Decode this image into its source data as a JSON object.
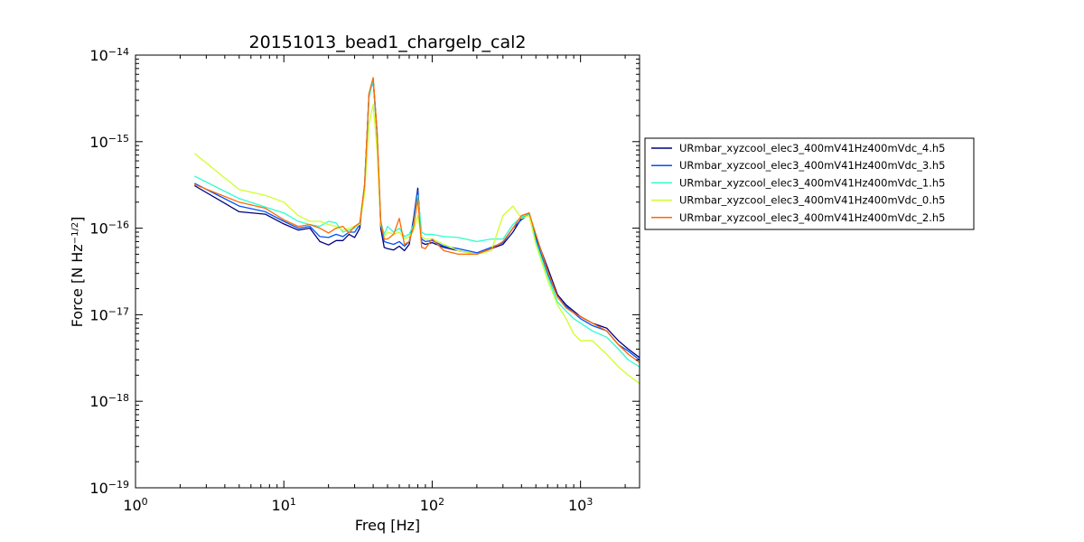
{
  "chart_data": {
    "type": "line",
    "title": "20151013_bead1_chargelp_cal2",
    "xlabel": "Freq [Hz]",
    "ylabel": "Force [N Hz",
    "ylabel_exponent": "−1/2",
    "ylabel_close": "]",
    "xscale": "log",
    "yscale": "log",
    "xlim": [
      1,
      2500
    ],
    "ylim": [
      1e-19,
      1e-14
    ],
    "x_ticks": [
      {
        "value": 1,
        "base": "10",
        "exp": "0"
      },
      {
        "value": 10,
        "base": "10",
        "exp": "1"
      },
      {
        "value": 100,
        "base": "10",
        "exp": "2"
      },
      {
        "value": 1000,
        "base": "10",
        "exp": "3"
      }
    ],
    "y_ticks": [
      {
        "value": 1e-19,
        "base": "10",
        "exp": "−19"
      },
      {
        "value": 1e-18,
        "base": "10",
        "exp": "−18"
      },
      {
        "value": 1e-17,
        "base": "10",
        "exp": "−17"
      },
      {
        "value": 1e-16,
        "base": "10",
        "exp": "−16"
      },
      {
        "value": 1e-15,
        "base": "10",
        "exp": "−15"
      },
      {
        "value": 1e-14,
        "base": "10",
        "exp": "−14"
      }
    ],
    "grid": false,
    "legend_position": "outside-right",
    "series": [
      {
        "name": "URmbar_xyzcool_elec3_400mV41Hz400mVdc_4.h5",
        "color": "#00007f",
        "x": [
          2.5,
          5,
          7.5,
          10,
          12.5,
          15,
          17.5,
          20,
          22.5,
          25,
          27.5,
          30,
          32.5,
          35,
          37.5,
          40,
          42.5,
          45,
          47.5,
          50,
          55,
          60,
          65,
          70,
          75,
          80,
          85,
          90,
          100,
          120,
          150,
          200,
          250,
          300,
          350,
          400,
          450,
          500,
          600,
          700,
          800,
          900,
          1000,
          1200,
          1500,
          1800,
          2100,
          2500
        ],
        "y": [
          3.1e-16,
          1.55e-16,
          1.45e-16,
          1.12e-16,
          9.5e-17,
          1e-16,
          7e-17,
          6.4e-17,
          7.2e-17,
          7.2e-17,
          8.5e-17,
          7.8e-17,
          1e-16,
          3e-16,
          3.5e-15,
          5.3e-15,
          1.3e-15,
          1e-16,
          6e-17,
          5.8e-17,
          5.6e-17,
          6.2e-17,
          5.5e-17,
          6.5e-17,
          1.3e-16,
          2.9e-16,
          6.8e-17,
          6.5e-17,
          6.8e-17,
          6e-17,
          5.5e-17,
          5e-17,
          5.8e-17,
          6.5e-17,
          9e-17,
          1.3e-16,
          1.5e-16,
          8e-17,
          3.5e-17,
          1.7e-17,
          1.3e-17,
          1.1e-17,
          9.5e-18,
          8e-18,
          7e-18,
          5e-18,
          4e-18,
          3.2e-18
        ]
      },
      {
        "name": "URmbar_xyzcool_elec3_400mV41Hz400mVdc_3.h5",
        "color": "#0050ff",
        "x": [
          2.5,
          5,
          7.5,
          10,
          12.5,
          15,
          17.5,
          20,
          22.5,
          25,
          27.5,
          30,
          32.5,
          35,
          37.5,
          40,
          42.5,
          45,
          47.5,
          50,
          55,
          60,
          65,
          70,
          75,
          80,
          85,
          90,
          100,
          120,
          150,
          200,
          250,
          300,
          350,
          400,
          450,
          500,
          600,
          700,
          800,
          900,
          1000,
          1200,
          1500,
          1800,
          2100,
          2500
        ],
        "y": [
          3.3e-16,
          1.8e-16,
          1.55e-16,
          1.2e-16,
          1e-16,
          1.05e-16,
          8e-17,
          7.8e-17,
          8.5e-17,
          8e-17,
          9e-17,
          9e-17,
          1.1e-16,
          3.2e-16,
          3.4e-15,
          5e-15,
          1.2e-15,
          1.1e-16,
          7e-17,
          6.8e-17,
          6.5e-17,
          7e-17,
          6.2e-17,
          7e-17,
          1.2e-16,
          2.7e-16,
          7.5e-17,
          7e-17,
          7.2e-17,
          6.2e-17,
          5.8e-17,
          5.2e-17,
          6e-17,
          6.8e-17,
          1e-16,
          1.25e-16,
          1.45e-16,
          7.5e-17,
          3e-17,
          1.6e-17,
          1.25e-17,
          1.05e-17,
          9e-18,
          7.5e-18,
          6.5e-18,
          4.5e-18,
          3.8e-18,
          3e-18
        ]
      },
      {
        "name": "URmbar_xyzcool_elec3_400mV41Hz400mVdc_1.h5",
        "color": "#29ffce",
        "x": [
          2.5,
          5,
          7.5,
          10,
          12.5,
          15,
          17.5,
          20,
          22.5,
          25,
          27.5,
          30,
          32.5,
          35,
          37.5,
          40,
          42.5,
          45,
          47.5,
          50,
          55,
          60,
          65,
          70,
          75,
          80,
          85,
          90,
          100,
          120,
          150,
          200,
          250,
          300,
          350,
          400,
          450,
          500,
          600,
          700,
          800,
          900,
          1000,
          1200,
          1500,
          1800,
          2100,
          2500
        ],
        "y": [
          4e-16,
          2.2e-16,
          1.75e-16,
          1.5e-16,
          1.2e-16,
          1.1e-16,
          1.05e-16,
          1.2e-16,
          1.15e-16,
          9e-17,
          9.5e-17,
          1e-16,
          1.15e-16,
          3e-16,
          3.2e-15,
          5.2e-15,
          1.25e-15,
          1.2e-16,
          8.5e-17,
          1.05e-16,
          9e-17,
          1e-16,
          8e-17,
          8.5e-17,
          1.1e-16,
          2.4e-16,
          9e-17,
          8.5e-17,
          8.5e-17,
          8e-17,
          7.8e-17,
          7e-17,
          7.5e-17,
          7.5e-17,
          1.1e-16,
          1.35e-16,
          1.45e-16,
          7e-17,
          2.8e-17,
          1.4e-17,
          1.1e-17,
          9e-18,
          8e-18,
          6.5e-18,
          5.5e-18,
          4e-18,
          3e-18,
          2.5e-18
        ]
      },
      {
        "name": "URmbar_xyzcool_elec3_400mV41Hz400mVdc_0.h5",
        "color": "#ceff29",
        "x": [
          2.5,
          5,
          7.5,
          10,
          12.5,
          15,
          17.5,
          20,
          22.5,
          25,
          27.5,
          30,
          32.5,
          35,
          37.5,
          40,
          42.5,
          45,
          47.5,
          50,
          55,
          60,
          65,
          70,
          75,
          80,
          85,
          90,
          100,
          120,
          150,
          200,
          250,
          300,
          350,
          400,
          450,
          500,
          600,
          700,
          800,
          900,
          1000,
          1200,
          1500,
          1800,
          2100,
          2500
        ],
        "y": [
          7.3e-16,
          2.8e-16,
          2.4e-16,
          2e-16,
          1.4e-16,
          1.2e-16,
          1.2e-16,
          1.1e-16,
          1.05e-16,
          9.5e-17,
          1e-16,
          1.05e-16,
          1.1e-16,
          2.5e-16,
          1.6e-15,
          2.7e-15,
          8e-16,
          1.1e-16,
          8e-17,
          9e-17,
          8.5e-17,
          9e-17,
          7.5e-17,
          8e-17,
          9.5e-17,
          1.4e-16,
          8e-17,
          7.5e-17,
          7.5e-17,
          6.5e-17,
          5.5e-17,
          5e-17,
          5.5e-17,
          1.4e-16,
          1.8e-16,
          1.3e-16,
          1.4e-16,
          6.5e-17,
          2.5e-17,
          1.3e-17,
          9e-18,
          6e-18,
          5e-18,
          5e-18,
          3.5e-18,
          2.5e-18,
          2e-18,
          1.6e-18
        ]
      },
      {
        "name": "URmbar_xyzcool_elec3_400mV41Hz400mVdc_2.h5",
        "color": "#ff6800",
        "x": [
          2.5,
          5,
          7.5,
          10,
          12.5,
          15,
          17.5,
          20,
          22.5,
          25,
          27.5,
          30,
          32.5,
          35,
          37.5,
          40,
          42.5,
          45,
          47.5,
          50,
          55,
          60,
          65,
          70,
          75,
          80,
          85,
          90,
          100,
          120,
          150,
          200,
          250,
          300,
          350,
          400,
          450,
          500,
          600,
          700,
          800,
          900,
          1000,
          1200,
          1500,
          1800,
          2100,
          2500
        ],
        "y": [
          3.2e-16,
          2e-16,
          1.7e-16,
          1.25e-16,
          1.05e-16,
          1.1e-16,
          1e-16,
          8.8e-17,
          1e-16,
          1.05e-16,
          8.8e-17,
          1.05e-16,
          1.15e-16,
          3.1e-16,
          3.6e-15,
          5.5e-15,
          1.3e-15,
          1.2e-16,
          7.5e-17,
          7.5e-17,
          8.5e-17,
          1.3e-16,
          6.5e-17,
          7e-17,
          1.05e-16,
          2.2e-16,
          6e-17,
          5.8e-17,
          7.5e-17,
          5.5e-17,
          5e-17,
          5e-17,
          5.8e-17,
          7e-17,
          1e-16,
          1.4e-16,
          1.5e-16,
          8.5e-17,
          3.2e-17,
          1.6e-17,
          1.2e-17,
          1.05e-17,
          9.5e-18,
          8e-18,
          6.5e-18,
          4.5e-18,
          3.5e-18,
          2.8e-18
        ]
      }
    ]
  }
}
